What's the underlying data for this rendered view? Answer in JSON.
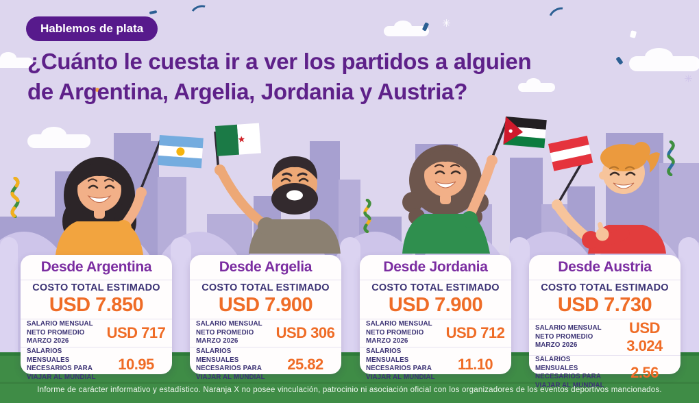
{
  "badge": {
    "label": "Hablemos de plata"
  },
  "title": {
    "line1": "¿Cuánto le cuesta ir a ver los partidos a alguien",
    "line2": "de Argentina, Argelia, Jordania y Austria?"
  },
  "labels": {
    "cost_total": "COSTO TOTAL ESTIMADO",
    "salary": "SALARIO MENSUAL NETO PROMEDIO MARZO 2026",
    "ratio": "SALARIOS MENSUALES NECESARIOS PARA VIAJAR AL MUNDIAL"
  },
  "cards": [
    {
      "title": "Desde Argentina",
      "flag": "argentina-flag",
      "total": "USD 7.850",
      "salary": "USD 717",
      "ratio": "10.95"
    },
    {
      "title": "Desde Argelia",
      "flag": "algeria-flag",
      "total": "USD 7.900",
      "salary": "USD 306",
      "ratio": "25.82"
    },
    {
      "title": "Desde Jordania",
      "flag": "jordan-flag",
      "total": "USD 7.900",
      "salary": "USD 712",
      "ratio": "11.10"
    },
    {
      "title": "Desde Austria",
      "flag": "austria-flag",
      "total": "USD 7.730",
      "salary": "USD 3.024",
      "ratio": "2.56"
    }
  ],
  "chart_data": {
    "type": "table",
    "categories": [
      "Argentina",
      "Argelia",
      "Jordania",
      "Austria"
    ],
    "series": [
      {
        "name": "Costo total estimado (USD)",
        "values": [
          7850,
          7900,
          7900,
          7730
        ]
      },
      {
        "name": "Salario mensual neto promedio marzo 2026 (USD)",
        "values": [
          717,
          306,
          712,
          3024
        ]
      },
      {
        "name": "Salarios mensuales necesarios para viajar al mundial",
        "values": [
          10.95,
          25.82,
          11.1,
          2.56
        ]
      }
    ],
    "title": "¿Cuánto le cuesta ir a ver los partidos a alguien de Argentina, Argelia, Jordania y Austria?"
  },
  "footer": {
    "disclaimer": "Informe de carácter informativo y estadístico. Naranja X no posee vinculación, patrocinio ni asociación oficial con los organizadores de los eventos deportivos mancionados."
  },
  "icons": {
    "sparkle": "✳"
  },
  "colors": {
    "badge_purple": "#571a8c",
    "headline_purple": "#5e2189",
    "card_title_purple": "#7b2da1",
    "value_orange": "#ef6c26",
    "label_navy": "#3b3274",
    "field_green": "#3f8c46",
    "background_lavender": "#ddd6ee"
  }
}
